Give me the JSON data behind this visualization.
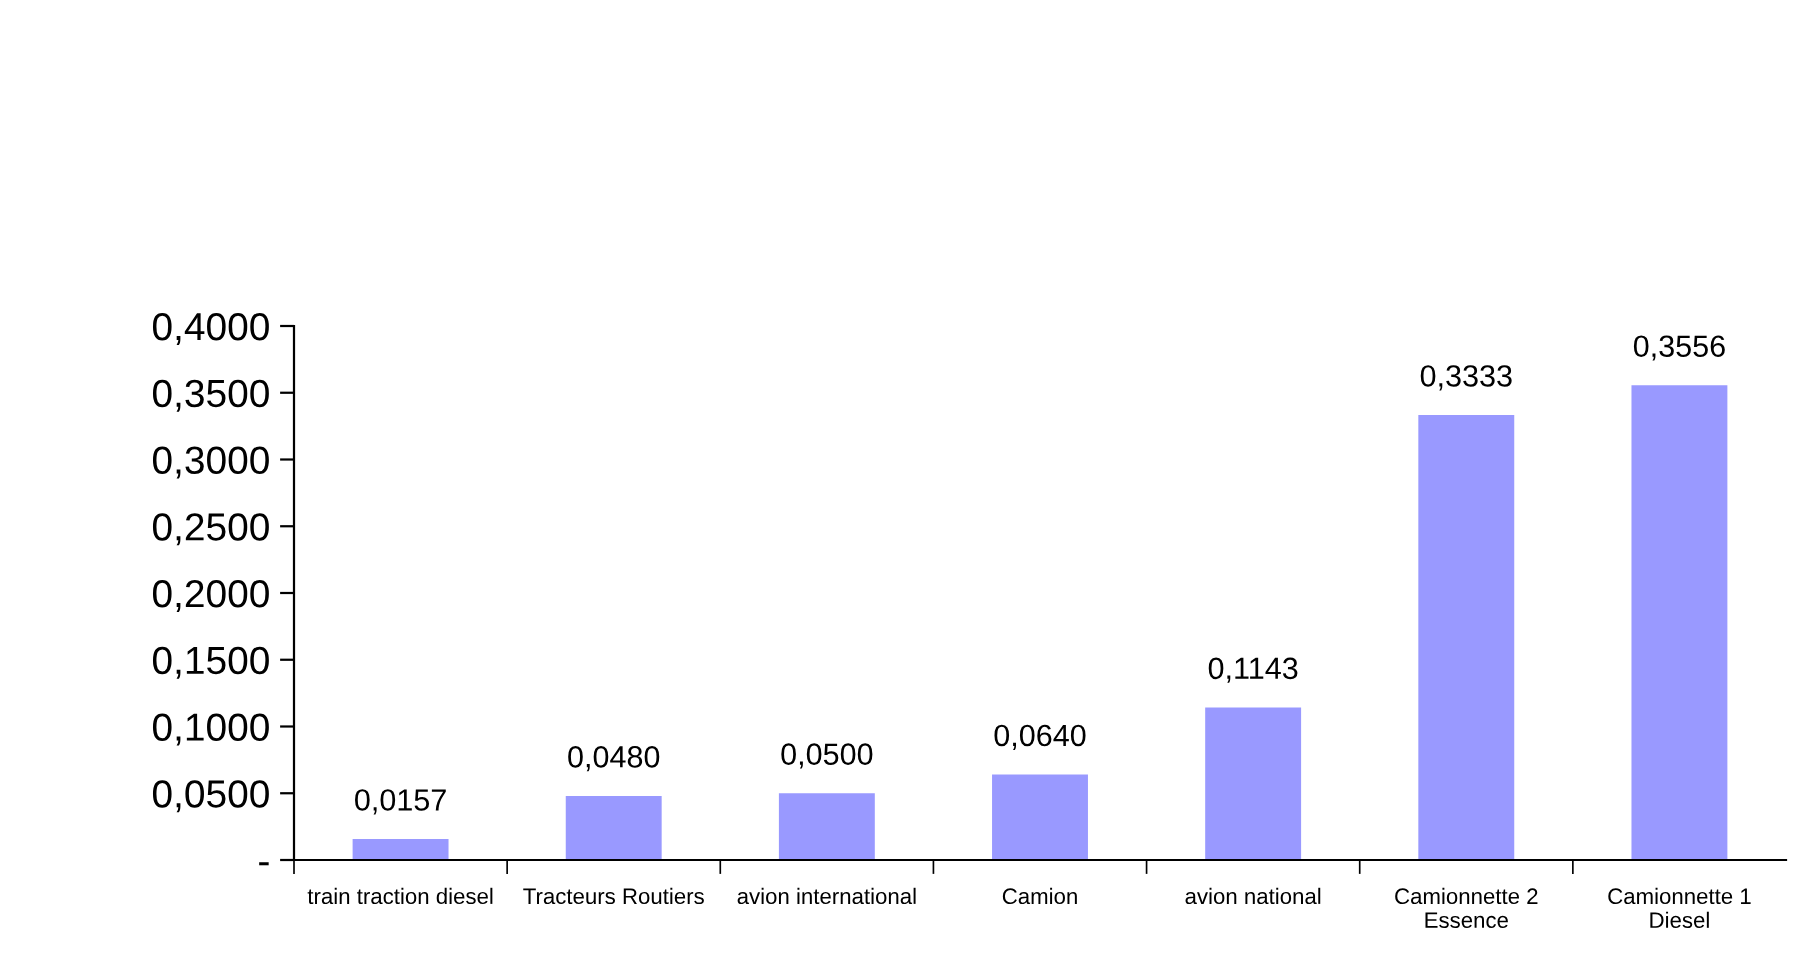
{
  "chart_data": {
    "type": "bar",
    "categories": [
      "train traction diesel",
      "Tracteurs Routiers",
      "avion international",
      "Camion",
      "avion national",
      "Camionnette 2\nEssence",
      "Camionnette 1\nDiesel"
    ],
    "values": [
      0.0157,
      0.048,
      0.05,
      0.064,
      0.1143,
      0.3333,
      0.3556
    ],
    "value_labels": [
      "0,0157",
      "0,0480",
      "0,0500",
      "0,0640",
      "0,1143",
      "0,3333",
      "0,3556"
    ],
    "color": "#9999ff",
    "ylim": [
      0,
      0.4
    ],
    "yticks": [
      {
        "value": 0,
        "label": "-"
      },
      {
        "value": 0.05,
        "label": "0,0500"
      },
      {
        "value": 0.1,
        "label": "0,1000"
      },
      {
        "value": 0.15,
        "label": "0,1500"
      },
      {
        "value": 0.2,
        "label": "0,2000"
      },
      {
        "value": 0.25,
        "label": "0,2500"
      },
      {
        "value": 0.3,
        "label": "0,3000"
      },
      {
        "value": 0.35,
        "label": "0,3500"
      },
      {
        "value": 0.4,
        "label": "0,4000"
      }
    ],
    "grid": false
  }
}
